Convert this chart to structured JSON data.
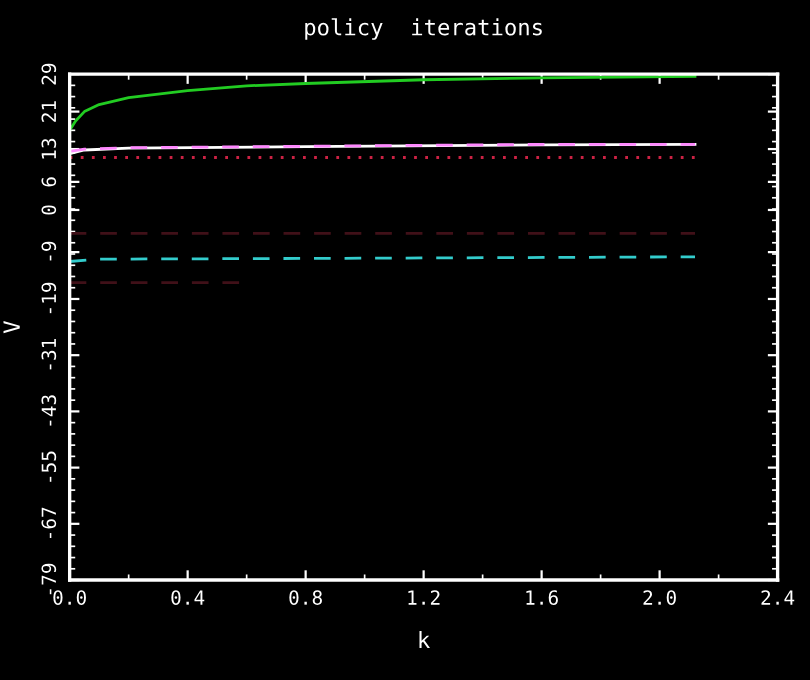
{
  "chart_data": {
    "type": "line",
    "title": "policy  iterations",
    "xlabel": "k",
    "ylabel": "V",
    "xlim": [
      0,
      2.4
    ],
    "xticks": [
      {
        "value": 0,
        "label": "0.0"
      },
      0.4,
      0.8,
      1.2,
      1.6,
      {
        "value": 2.0,
        "label": "2.0"
      },
      2.4
    ],
    "ylim": [
      -79,
      29
    ],
    "yticks": [
      -79,
      -67,
      -55,
      -43,
      -31,
      -19,
      -9,
      0,
      6,
      13,
      21,
      29
    ],
    "grid": false,
    "legend": false,
    "marker": "none",
    "series": [
      {
        "color": "#22cc22",
        "line_style": "solid",
        "x": [
          0,
          0.02,
          0.05,
          0.1,
          0.2,
          0.4,
          0.6,
          0.8,
          1.2,
          1.6,
          2.12
        ],
        "values": [
          17,
          19,
          21,
          22.5,
          24,
          25.5,
          26.5,
          27,
          27.8,
          28.2,
          28.5
        ]
      },
      {
        "color": "#ffffff",
        "line_style": "solid",
        "x": [
          0,
          0.05,
          0.2,
          0.8,
          1.6,
          2.12
        ],
        "values": [
          12,
          12.8,
          13.2,
          13.5,
          13.9,
          14
        ]
      },
      {
        "color": "#ff88ff",
        "line_style": "dashed",
        "x": [
          0,
          0.05,
          0.2,
          0.8,
          1.6,
          2.12
        ],
        "values": [
          12.5,
          13,
          13.3,
          13.6,
          14,
          14
        ]
      },
      {
        "color": "#cc2244",
        "line_style": "dotted",
        "x": [
          0,
          2.12
        ],
        "values": [
          11.2,
          11.2
        ]
      },
      {
        "color": "#33cccc",
        "line_style": "dashed",
        "x": [
          0,
          0.1,
          1.0,
          2.12
        ],
        "values": [
          -11,
          -10.5,
          -10.3,
          -10
        ]
      },
      {
        "color": "#401018",
        "line_style": "dashed",
        "x": [
          0,
          2.12
        ],
        "values": [
          -5,
          -5
        ]
      },
      {
        "color": "#401018",
        "line_style": "dashed",
        "x": [
          0,
          0.59
        ],
        "values": [
          -15.5,
          -15.5
        ]
      }
    ]
  }
}
